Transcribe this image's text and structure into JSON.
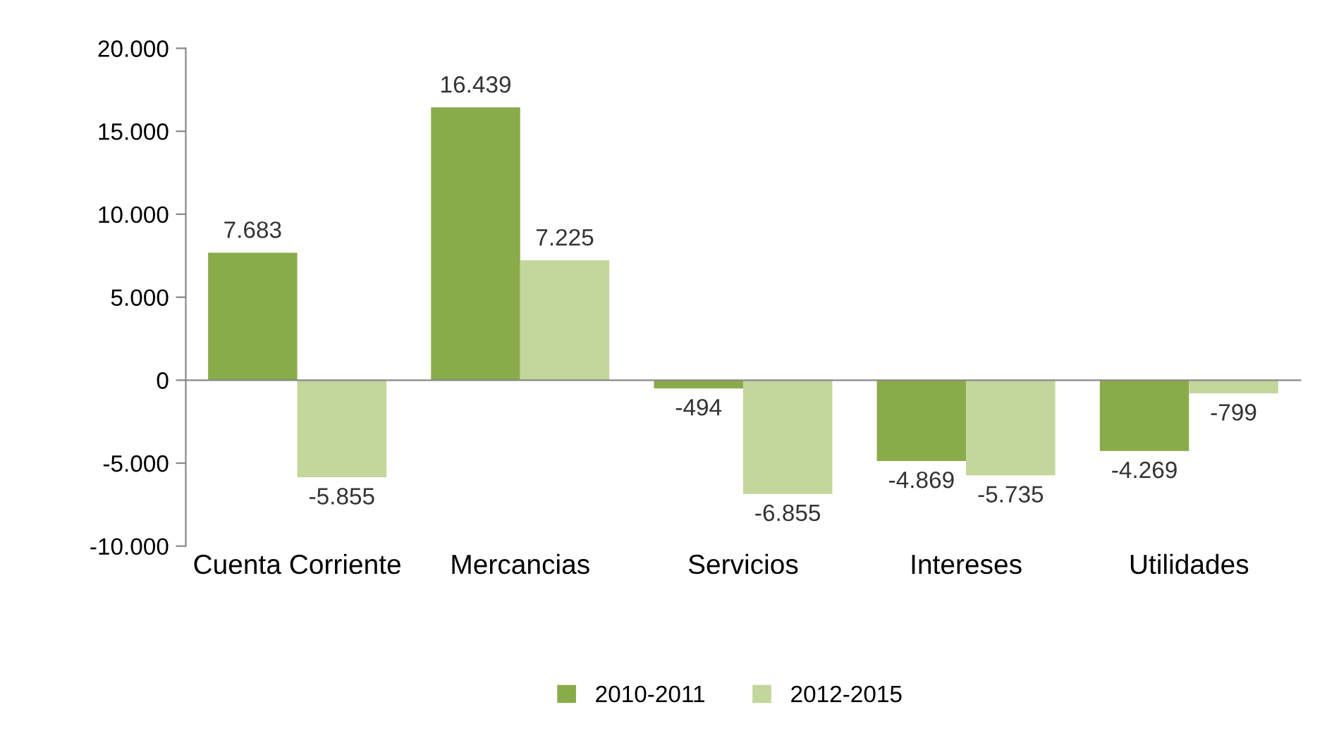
{
  "chart_data": {
    "type": "bar",
    "categories": [
      "Cuenta Corriente",
      "Mercancias",
      "Servicios",
      "Intereses",
      "Utilidades"
    ],
    "series": [
      {
        "name": "2010-2011",
        "color": "#8aab4a",
        "values": [
          7683,
          16439,
          -494,
          -4869,
          -4269
        ],
        "value_labels": [
          "7.683",
          "16.439",
          "-494",
          "-4.869",
          "-4.269"
        ]
      },
      {
        "name": "2012-2015",
        "color": "#c3d69b",
        "values": [
          -5855,
          7225,
          -6855,
          -5735,
          -799
        ],
        "value_labels": [
          "-5.855",
          "7.225",
          "-6.855",
          "-5.735",
          "-799"
        ]
      }
    ],
    "ylim": [
      -10000,
      20000
    ],
    "yticks": [
      {
        "value": -10000,
        "label": "-10.000"
      },
      {
        "value": -5000,
        "label": "-5.000"
      },
      {
        "value": 0,
        "label": "0"
      },
      {
        "value": 5000,
        "label": "5.000"
      },
      {
        "value": 10000,
        "label": "10.000"
      },
      {
        "value": 15000,
        "label": "15.000"
      },
      {
        "value": 20000,
        "label": "20.000"
      }
    ],
    "legend": "bottom"
  }
}
